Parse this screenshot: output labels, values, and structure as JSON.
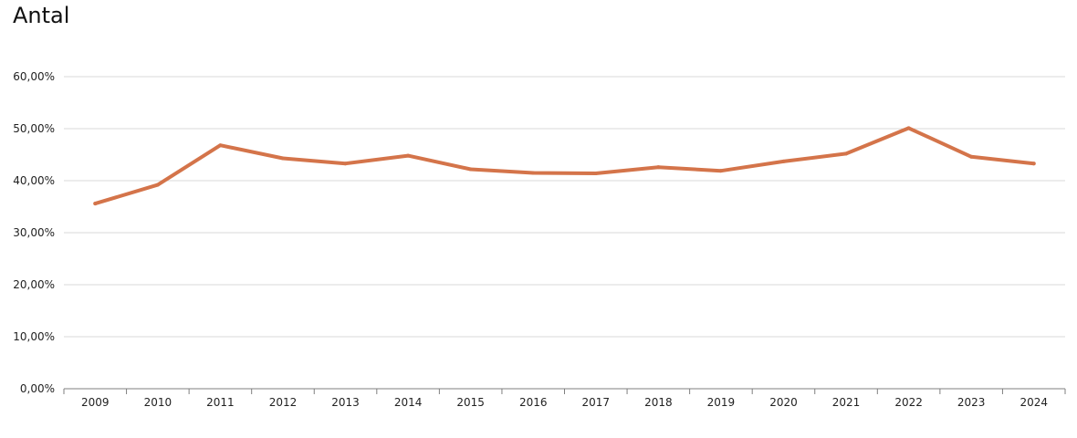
{
  "chart_data": {
    "type": "line",
    "title": "Antal",
    "xlabel": "",
    "ylabel": "",
    "x": [
      "2009",
      "2010",
      "2011",
      "2012",
      "2013",
      "2014",
      "2015",
      "2016",
      "2017",
      "2018",
      "2019",
      "2020",
      "2021",
      "2022",
      "2023",
      "2024"
    ],
    "series": [
      {
        "values": [
          35.6,
          39.2,
          46.8,
          44.3,
          43.3,
          44.8,
          42.2,
          41.5,
          41.4,
          42.6,
          41.9,
          43.7,
          45.2,
          50.1,
          44.6,
          43.3
        ]
      }
    ],
    "ylim": [
      0,
      60
    ],
    "yticks": [
      0,
      10,
      20,
      30,
      40,
      50,
      60
    ],
    "ytick_labels": [
      "0,00%",
      "10,00%",
      "20,00%",
      "30,00%",
      "40,00%",
      "50,00%",
      "60,00%"
    ],
    "grid": true,
    "colors": {
      "line": "#d4744a",
      "grid": "#d9d9d9",
      "axis": "#7f7f7f"
    }
  }
}
